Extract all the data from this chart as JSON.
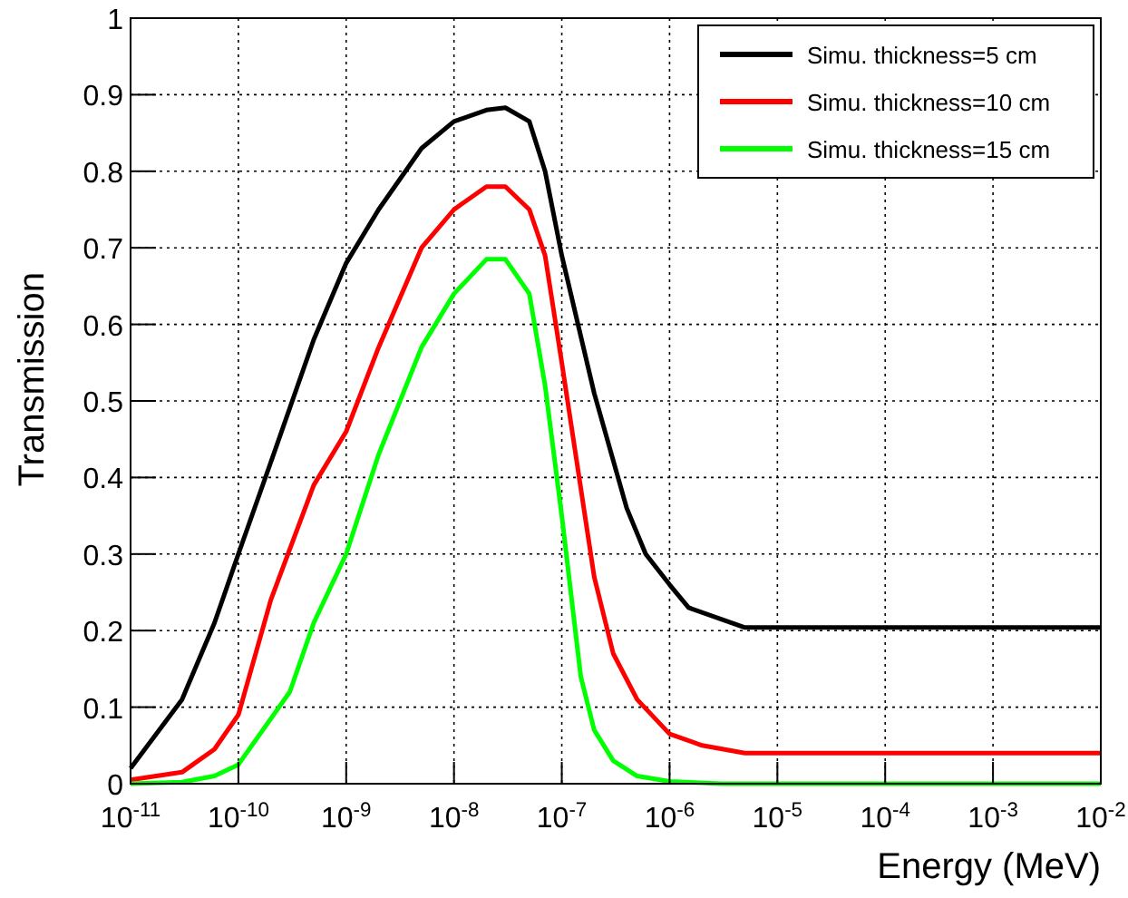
{
  "chart_data": {
    "type": "line",
    "xlabel": "Energy (MeV)",
    "ylabel": "Transmission",
    "log": "x",
    "grid": true,
    "legend": "top right",
    "line_style": "solid",
    "marker": "none",
    "xlim": [
      1e-11,
      0.01
    ],
    "ylim": [
      0,
      1
    ],
    "xticks": [
      {
        "value": 1e-11,
        "label": "10$^{-11}$"
      },
      {
        "value": 1e-10,
        "label": "10$^{-10}$"
      },
      {
        "value": 1e-09,
        "label": "10$^{-9}$"
      },
      {
        "value": 1e-08,
        "label": "10$^{-8}$"
      },
      {
        "value": 1e-07,
        "label": "10$^{-7}$"
      },
      {
        "value": 1e-06,
        "label": "10$^{-6}$"
      },
      {
        "value": 1e-05,
        "label": "10$^{-5}$"
      },
      {
        "value": 0.0001,
        "label": "10$^{-4}$"
      },
      {
        "value": 0.001,
        "label": "10$^{-3}$"
      },
      {
        "value": 0.01,
        "label": "10$^{-2}$"
      }
    ],
    "yticks": [
      0,
      0.1,
      0.2,
      0.3,
      0.4,
      0.5,
      0.6,
      0.7,
      0.8,
      0.9,
      1
    ],
    "series": [
      {
        "name": "Simu. thickness=5 cm",
        "color": "#000000",
        "x": [
          1e-11,
          3e-11,
          6e-11,
          1e-10,
          2e-10,
          5e-10,
          1e-09,
          2e-09,
          5e-09,
          1e-08,
          2e-08,
          3e-08,
          5e-08,
          7e-08,
          1e-07,
          2e-07,
          4e-07,
          6e-07,
          1e-06,
          1.5e-06,
          5e-06,
          0.01
        ],
        "values": [
          0.02,
          0.11,
          0.21,
          0.3,
          0.42,
          0.58,
          0.68,
          0.75,
          0.83,
          0.865,
          0.88,
          0.883,
          0.865,
          0.8,
          0.69,
          0.51,
          0.36,
          0.3,
          0.26,
          0.23,
          0.204,
          0.204
        ]
      },
      {
        "name": "Simu. thickness=10 cm",
        "color": "#ff0000",
        "x": [
          1e-11,
          3e-11,
          6e-11,
          1e-10,
          2e-10,
          5e-10,
          1e-09,
          2e-09,
          5e-09,
          1e-08,
          2e-08,
          3e-08,
          5e-08,
          7e-08,
          1e-07,
          2e-07,
          3e-07,
          5e-07,
          1e-06,
          2e-06,
          5e-06,
          0.01
        ],
        "values": [
          0.005,
          0.015,
          0.045,
          0.09,
          0.24,
          0.39,
          0.46,
          0.57,
          0.7,
          0.75,
          0.78,
          0.78,
          0.75,
          0.69,
          0.55,
          0.27,
          0.17,
          0.11,
          0.065,
          0.05,
          0.04,
          0.04
        ]
      },
      {
        "name": "Simu. thickness=15 cm",
        "color": "#00ff00",
        "x": [
          1e-11,
          3e-11,
          6e-11,
          1e-10,
          3e-10,
          5e-10,
          1e-09,
          2e-09,
          5e-09,
          1e-08,
          2e-08,
          3e-08,
          5e-08,
          7e-08,
          1e-07,
          1.5e-07,
          2e-07,
          3e-07,
          5e-07,
          1e-06,
          3e-06,
          0.01
        ],
        "values": [
          0,
          0.002,
          0.01,
          0.025,
          0.12,
          0.21,
          0.3,
          0.43,
          0.57,
          0.64,
          0.685,
          0.685,
          0.64,
          0.52,
          0.35,
          0.14,
          0.07,
          0.03,
          0.01,
          0.003,
          0,
          0
        ]
      }
    ]
  }
}
